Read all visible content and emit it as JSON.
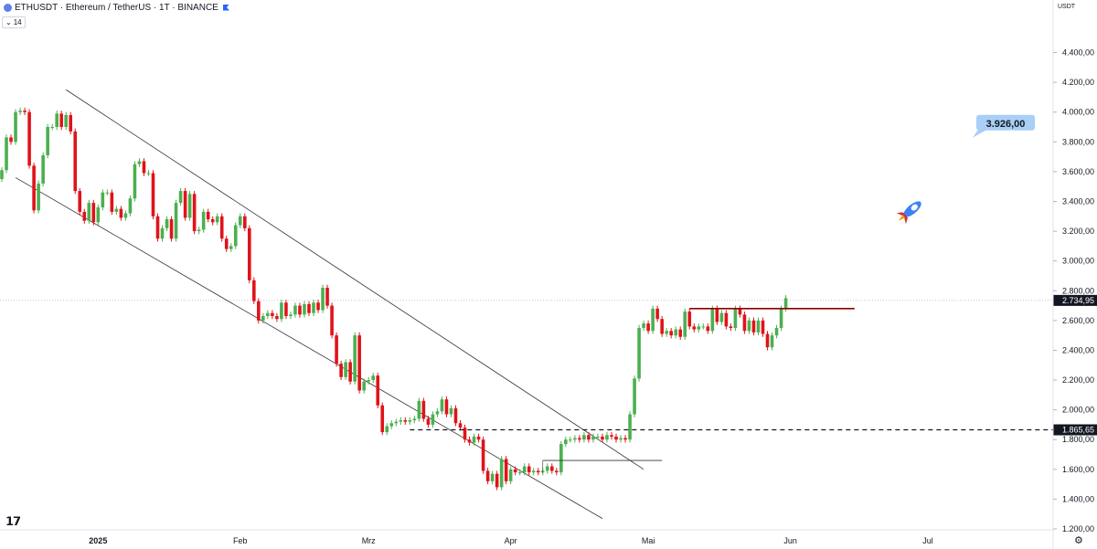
{
  "header": {
    "symbol_title": "ETHUSDT · Ethereum / TetherUS · 1T · BINANCE",
    "indicator_count": "14"
  },
  "price_axis": {
    "currency": "USDT",
    "current_price_label": "2.734,95",
    "level_price_label": "1.865,65"
  },
  "target_label": "3.926,00",
  "icons": {
    "symbol": "ethereum-icon",
    "rocket": "rocket-icon",
    "logo": "tradingview-logo",
    "settings": "gear-icon"
  },
  "colors": {
    "up": "#4caf50",
    "down": "#e0131a",
    "target_bg": "#a9cff7",
    "resistance": "#8b0000"
  },
  "chart_data": {
    "type": "candlestick",
    "y_ticks": [
      "1.200,00",
      "1.400,00",
      "1.600,00",
      "1.800,00",
      "2.000,00",
      "2.200,00",
      "2.400,00",
      "2.600,00",
      "2.800,00",
      "3.000,00",
      "3.200,00",
      "3.400,00",
      "3.600,00",
      "3.800,00",
      "4.000,00",
      "4.200,00",
      "4.400,00"
    ],
    "x_ticks": [
      "2025",
      "Feb",
      "Mrz",
      "Apr",
      "Mai",
      "Jun",
      "Jul"
    ],
    "ylim": [
      1150,
      4580
    ],
    "start_date": "2024-12-11",
    "date_range": [
      "2024-12-11",
      "2025-07-25"
    ],
    "x_tick_dates": [
      "2025-01-01",
      "2025-02-01",
      "2025-03-01",
      "2025-04-01",
      "2025-05-01",
      "2025-06-01",
      "2025-07-01"
    ],
    "closes": [
      3610,
      3830,
      3800,
      4000,
      4010,
      4000,
      3640,
      3340,
      3520,
      3710,
      3900,
      3900,
      3990,
      3900,
      3980,
      3870,
      3470,
      3330,
      3270,
      3390,
      3260,
      3360,
      3460,
      3460,
      3330,
      3350,
      3290,
      3320,
      3420,
      3650,
      3670,
      3590,
      3590,
      3300,
      3150,
      3220,
      3280,
      3150,
      3390,
      3470,
      3290,
      3450,
      3200,
      3210,
      3330,
      3280,
      3260,
      3300,
      3150,
      3080,
      3100,
      3240,
      3300,
      3220,
      2870,
      2730,
      2600,
      2630,
      2650,
      2630,
      2610,
      2720,
      2630,
      2640,
      2700,
      2640,
      2710,
      2650,
      2720,
      2670,
      2820,
      2700,
      2500,
      2310,
      2220,
      2320,
      2190,
      2500,
      2130,
      2190,
      2200,
      2230,
      2030,
      1850,
      1890,
      1910,
      1920,
      1930,
      1920,
      1930,
      1940,
      2060,
      1940,
      1900,
      1970,
      1990,
      2070,
      1970,
      2010,
      1910,
      1880,
      1800,
      1780,
      1820,
      1800,
      1590,
      1520,
      1570,
      1480,
      1670,
      1520,
      1600,
      1580,
      1580,
      1620,
      1580,
      1590,
      1580,
      1590,
      1620,
      1590,
      1580,
      1770,
      1800,
      1800,
      1810,
      1800,
      1830,
      1800,
      1820,
      1820,
      1800,
      1830,
      1820,
      1800,
      1810,
      1800,
      1970,
      2210,
      2550,
      2580,
      2530,
      2680,
      2610,
      2510,
      2530,
      2500,
      2540,
      2490,
      2660,
      2560,
      2540,
      2560,
      2560,
      2530,
      2680,
      2590,
      2650,
      2560,
      2550,
      2680,
      2640,
      2530,
      2600,
      2520,
      2600,
      2510,
      2420,
      2500,
      2550,
      2680,
      2750
    ],
    "sma_or_levels": {
      "current_price": 2734.95,
      "horizontal_level": 1865.65,
      "resistance_level": 2680,
      "target": 3926
    }
  }
}
